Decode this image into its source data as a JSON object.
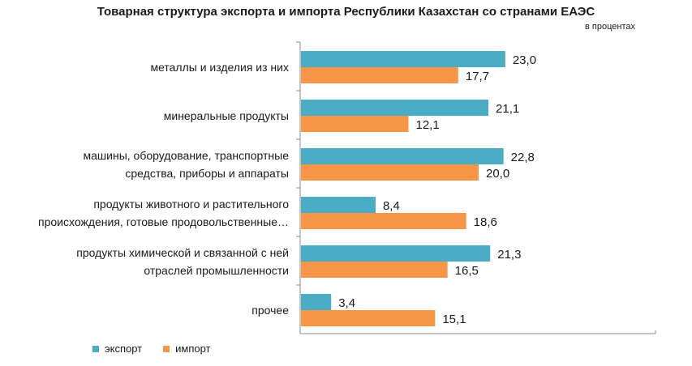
{
  "chart_data": {
    "type": "bar",
    "orientation": "horizontal",
    "title": "Товарная структура экспорта и импорта Республики Казахстан со странами ЕАЭС",
    "subtitle": "в процентах",
    "categories": [
      [
        "металлы и изделия из них"
      ],
      [
        "минеральные продукты"
      ],
      [
        "машины, оборудование, транспортные",
        "средства, приборы и аппараты"
      ],
      [
        "продукты животного и растительного",
        "происхождения, готовые продовольственные…"
      ],
      [
        "продукты химической и связанной с ней",
        "отраслей промышленности"
      ],
      [
        "прочее"
      ]
    ],
    "series": [
      {
        "name": "экспорт",
        "color": "#4bacc6",
        "values": [
          23.0,
          21.1,
          22.8,
          8.4,
          21.3,
          3.4
        ],
        "labels": [
          "23,0",
          "21,1",
          "22,8",
          "8,4",
          "21,3",
          "3,4"
        ]
      },
      {
        "name": "импорт",
        "color": "#f79646",
        "values": [
          17.7,
          12.1,
          20.0,
          18.6,
          16.5,
          15.1
        ],
        "labels": [
          "17,7",
          "12,1",
          "20,0",
          "18,6",
          "16,5",
          "15,1"
        ]
      }
    ],
    "xlim": [
      0,
      40
    ],
    "grid": false,
    "legend_position": "bottom-left"
  }
}
